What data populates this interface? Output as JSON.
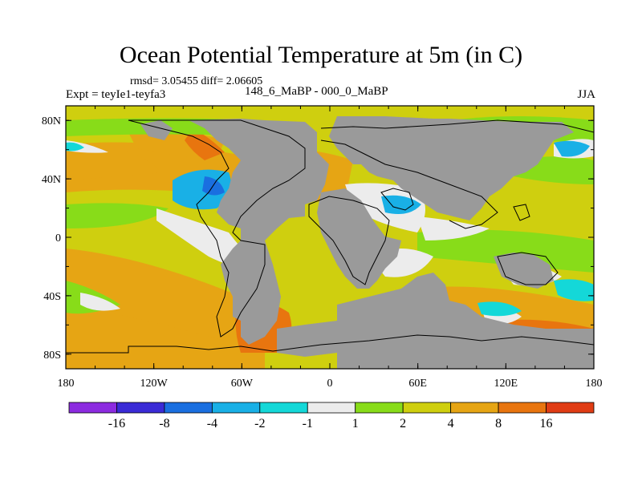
{
  "title": "Ocean Potential Temperature at 5m (in C)",
  "stats": "rmsd= 3.05455  diff= 2.06605",
  "experiment": "Expt = teyIe1-teyfa3",
  "period": "148_6_MaBP - 000_0_MaBP",
  "season": "JJA",
  "y_axis_labels": [
    "80N",
    "40N",
    "0",
    "40S",
    "80S"
  ],
  "x_axis_labels": [
    "180",
    "120W",
    "60W",
    "0",
    "60E",
    "120E",
    "180"
  ],
  "colorbar": {
    "labels": [
      "-16",
      "-8",
      "-4",
      "-2",
      "-1",
      "1",
      "2",
      "4",
      "8",
      "16"
    ],
    "colors": [
      "#8c2be0",
      "#3a2bd6",
      "#1a6fe0",
      "#19b0e6",
      "#14d8d8",
      "#ececec",
      "#88dc19",
      "#cfcf0f",
      "#e6a514",
      "#e8750f",
      "#e03c14"
    ]
  },
  "palette": {
    "land": "#9a9a9a",
    "zero": "#ececec"
  }
}
